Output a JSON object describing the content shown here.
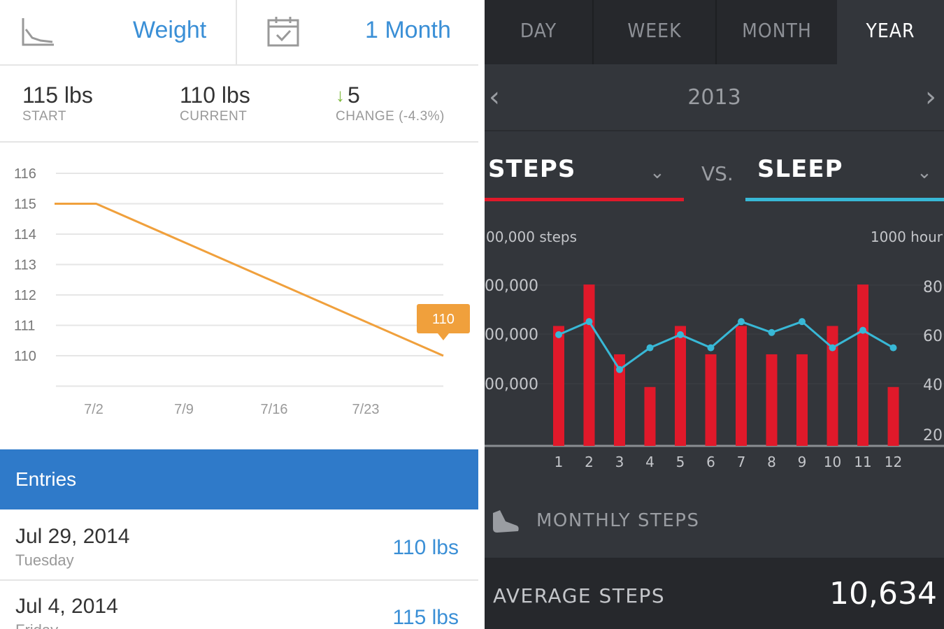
{
  "left": {
    "header": {
      "metric_label": "Weight",
      "range_label": "1 Month",
      "chart_icon": "line-chart-icon",
      "calendar_icon": "calendar-check-icon"
    },
    "stats": {
      "start_value": "115 lbs",
      "start_label": "START",
      "current_value": "110 lbs",
      "current_label": "CURRENT",
      "change_value": "5",
      "change_label": "CHANGE (-4.3%)",
      "change_icon": "arrow-down-icon"
    },
    "entries_title": "Entries",
    "entries": [
      {
        "date": "Jul 29, 2014",
        "day": "Tuesday",
        "weight": "110 lbs"
      },
      {
        "date": "Jul 4, 2014",
        "day": "Friday",
        "weight": "115 lbs"
      }
    ],
    "colors": {
      "accent": "#3a8fd6",
      "line": "#f0a03c",
      "entries_bar": "#2f7ac9"
    }
  },
  "right": {
    "tabs": [
      "DAY",
      "WEEK",
      "MONTH",
      "YEAR"
    ],
    "active_tab": "YEAR",
    "year": "2013",
    "metric_left": "STEPS",
    "vs_label": "VS.",
    "metric_right": "SLEEP",
    "monthly_label": "MONTHLY STEPS",
    "avg_label": "AVERAGE STEPS",
    "avg_value": "10,634",
    "colors": {
      "steps": "#e0192a",
      "sleep": "#38b8d6",
      "bg": "#33363b"
    }
  },
  "chart_data": [
    {
      "type": "line",
      "x": [
        "7/2",
        "7/9",
        "7/16",
        "7/23"
      ],
      "points": [
        {
          "x": "7/1",
          "y": 115
        },
        {
          "x": "7/4",
          "y": 115
        },
        {
          "x": "7/29",
          "y": 110
        }
      ],
      "yticks": [
        116,
        115,
        114,
        113,
        112,
        111,
        110
      ],
      "ylim": [
        109,
        116
      ],
      "callout": "110",
      "grid": true
    },
    {
      "type": "bar",
      "categories": [
        "1",
        "2",
        "3",
        "4",
        "5",
        "6",
        "7",
        "8",
        "9",
        "10",
        "11",
        "12"
      ],
      "left_axis_title": "00,000 steps",
      "left_axis_ticks": [
        "00,000",
        "00,000",
        "00,000"
      ],
      "right_axis_title": "1000 hour",
      "right_axis_ticks": [
        "80",
        "60",
        "40",
        "20"
      ],
      "series": [
        {
          "type": "bar",
          "values": [
            55,
            74,
            42,
            27,
            55,
            42,
            55,
            42,
            42,
            55,
            74,
            27
          ]
        },
        {
          "type": "line",
          "values": [
            51,
            57,
            35,
            45,
            51,
            45,
            57,
            52,
            57,
            45,
            53,
            45
          ]
        }
      ],
      "ylim": [
        0,
        100
      ]
    }
  ]
}
